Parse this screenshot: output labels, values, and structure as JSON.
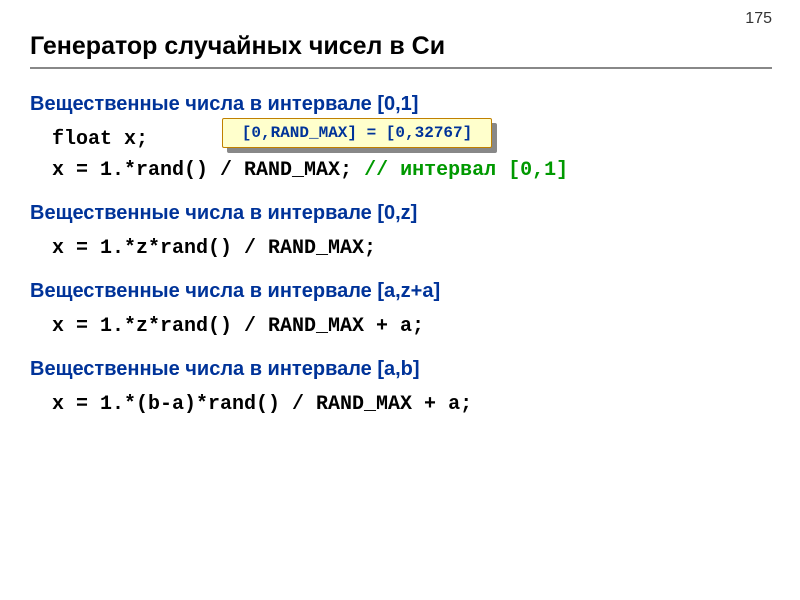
{
  "page_number": "175",
  "title": "Генератор случайных чисел в Си",
  "callout_text": "[0,RAND_MAX] = [0,32767]",
  "sections": [
    {
      "header": "Вещественные числа в интервале [0,1]",
      "lines": [
        {
          "code": "float x;",
          "comment": ""
        },
        {
          "code": "x = 1.*rand() / RAND_MAX;",
          "comment": " // интервал [0,1]"
        }
      ]
    },
    {
      "header": "Вещественные числа в интервале [0,z]",
      "lines": [
        {
          "code": "x = 1.*z*rand() / RAND_MAX;",
          "comment": ""
        }
      ]
    },
    {
      "header": "Вещественные числа в интервале [a,z+a]",
      "lines": [
        {
          "code": "x = 1.*z*rand() / RAND_MAX + a;",
          "comment": ""
        }
      ]
    },
    {
      "header": "Вещественные числа в интервале [a,b]",
      "lines": [
        {
          "code": "x = 1.*(b-a)*rand() / RAND_MAX + a;",
          "comment": ""
        }
      ]
    }
  ]
}
